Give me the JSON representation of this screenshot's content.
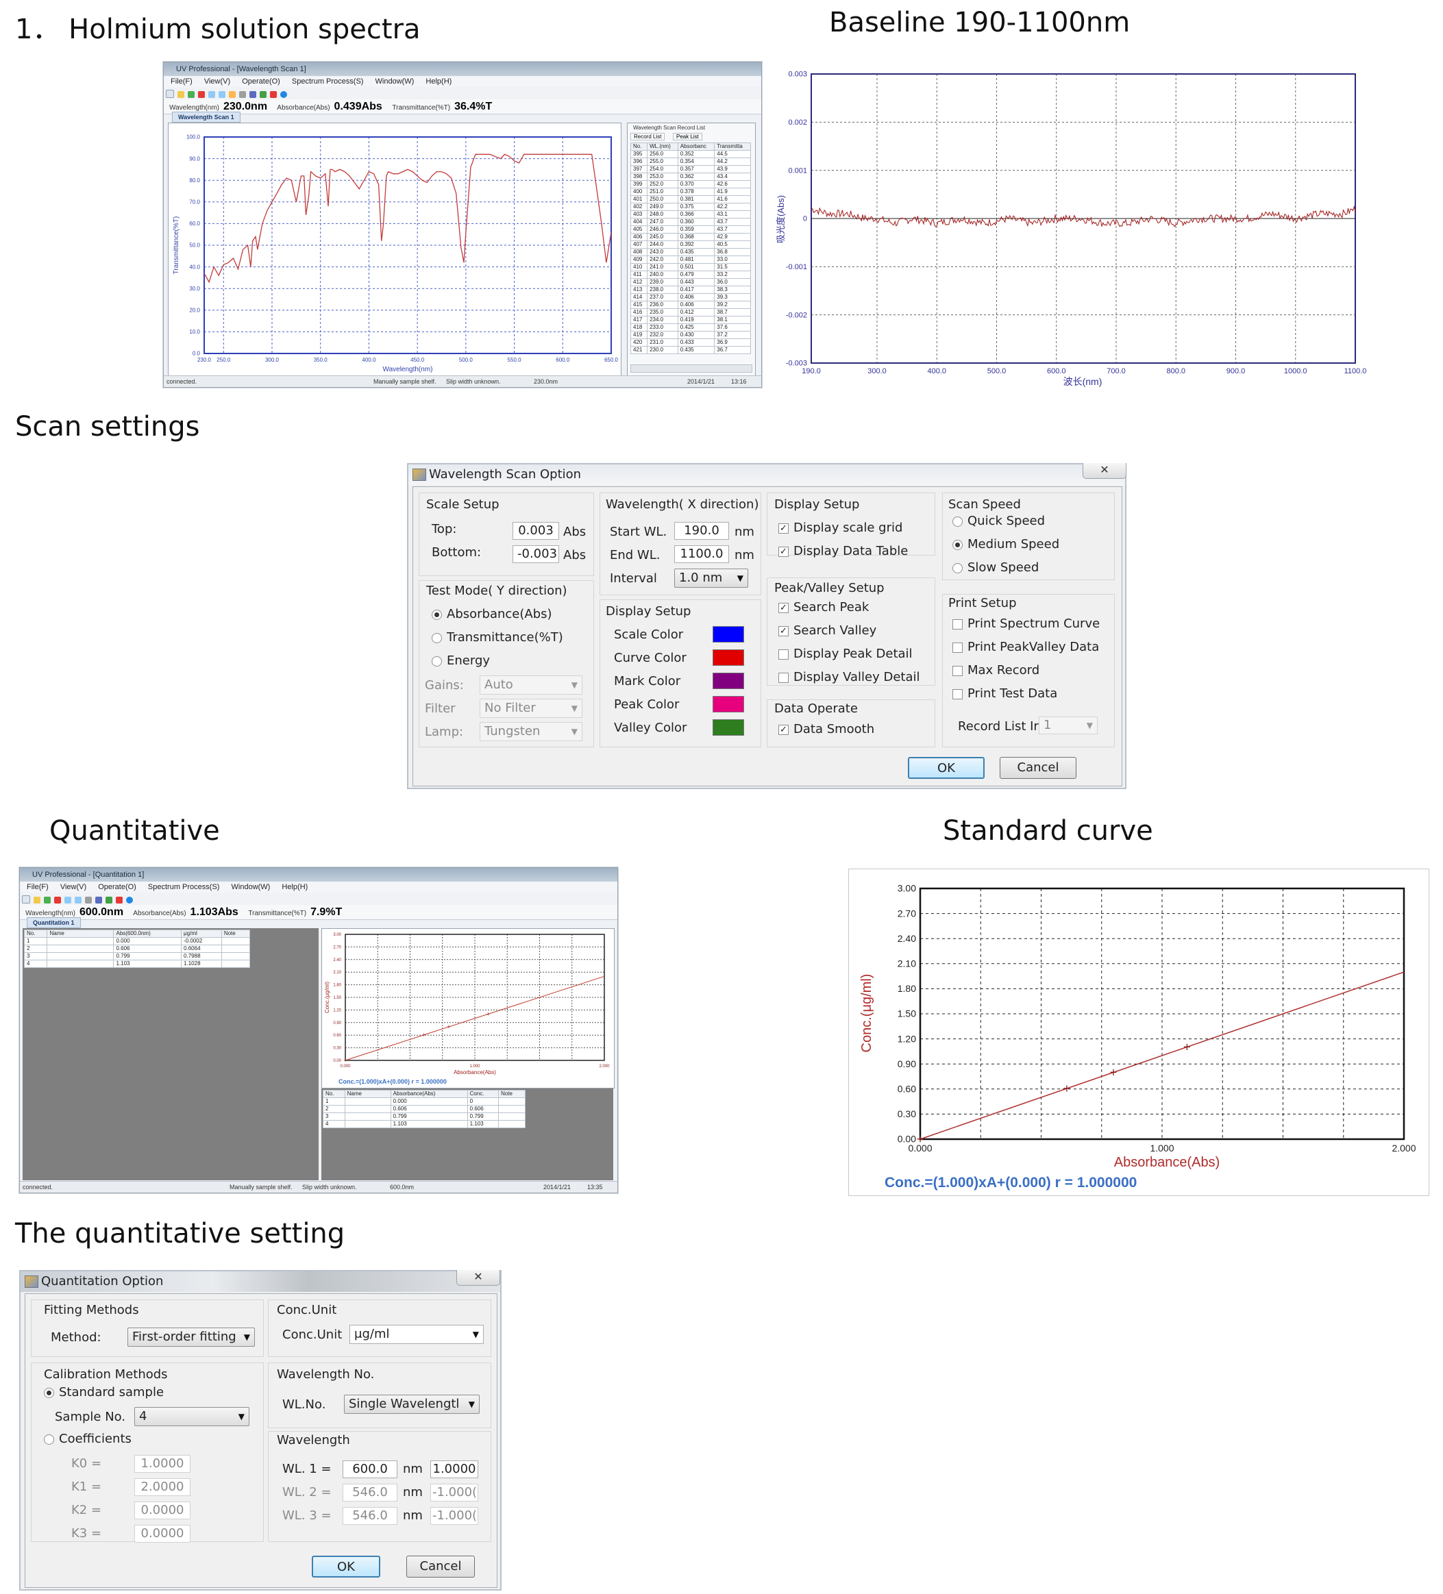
{
  "headings": {
    "holmium": "1． Holmium solution spectra",
    "baseline": "Baseline 190-1100nm",
    "scan_settings": "Scan settings",
    "quantitative": "Quantitative",
    "standard_curve": "Standard curve",
    "quant_setting": "The quantitative setting"
  },
  "scan_app": {
    "title": "UV Professional - [Wavelength Scan 1]",
    "menus": [
      "File(F)",
      "View(V)",
      "Operate(O)",
      "Spectrum Process(S)",
      "Window(W)",
      "Help(H)"
    ],
    "readout": {
      "wl_label": "Wavelength(nm)",
      "wl_value": "230.0nm",
      "abs_label": "Absorbance(Abs)",
      "abs_value": "0.439Abs",
      "trans_label": "Transmittance(%T)",
      "trans_value": "36.4%T"
    },
    "tab": "Wavelength Scan 1",
    "record_panel_title": "Wavelength Scan Record List",
    "record_tabs": [
      "Record List",
      "Peak List"
    ],
    "table_headers": [
      "No.",
      "WL.(nm)",
      "Absorbanc",
      "Transmitta"
    ],
    "table_rows": [
      [
        "395",
        "256.0",
        "0.352",
        "44.5"
      ],
      [
        "396",
        "255.0",
        "0.354",
        "44.2"
      ],
      [
        "397",
        "254.0",
        "0.357",
        "43.9"
      ],
      [
        "398",
        "253.0",
        "0.362",
        "43.4"
      ],
      [
        "399",
        "252.0",
        "0.370",
        "42.6"
      ],
      [
        "400",
        "251.0",
        "0.378",
        "41.9"
      ],
      [
        "401",
        "250.0",
        "0.381",
        "41.6"
      ],
      [
        "402",
        "249.0",
        "0.375",
        "42.2"
      ],
      [
        "403",
        "248.0",
        "0.366",
        "43.1"
      ],
      [
        "404",
        "247.0",
        "0.360",
        "43.7"
      ],
      [
        "405",
        "246.0",
        "0.359",
        "43.7"
      ],
      [
        "406",
        "245.0",
        "0.368",
        "42.9"
      ],
      [
        "407",
        "244.0",
        "0.392",
        "40.5"
      ],
      [
        "408",
        "243.0",
        "0.435",
        "36.8"
      ],
      [
        "409",
        "242.0",
        "0.481",
        "33.0"
      ],
      [
        "410",
        "241.0",
        "0.501",
        "31.5"
      ],
      [
        "411",
        "240.0",
        "0.479",
        "33.2"
      ],
      [
        "412",
        "239.0",
        "0.443",
        "36.0"
      ],
      [
        "413",
        "238.0",
        "0.417",
        "38.3"
      ],
      [
        "414",
        "237.0",
        "0.406",
        "39.3"
      ],
      [
        "415",
        "236.0",
        "0.406",
        "39.2"
      ],
      [
        "416",
        "235.0",
        "0.412",
        "38.7"
      ],
      [
        "417",
        "234.0",
        "0.419",
        "38.1"
      ],
      [
        "418",
        "233.0",
        "0.425",
        "37.6"
      ],
      [
        "419",
        "232.0",
        "0.430",
        "37.2"
      ],
      [
        "420",
        "231.0",
        "0.433",
        "36.9"
      ],
      [
        "421",
        "230.0",
        "0.435",
        "36.7"
      ]
    ],
    "status": [
      "connected.",
      "Manually sample shelf.",
      "Slip width unknown.",
      "230.0nm",
      "2014/1/21",
      "13:16"
    ]
  },
  "holmium_chart": {
    "type": "line",
    "xlabel": "Wavelength(nm)",
    "ylabel": "Transmittance(%T)",
    "xlim": [
      230,
      650
    ],
    "ylim": [
      0,
      100
    ],
    "xticks": [
      "230.0",
      "250.0",
      "300.0",
      "350.0",
      "400.0",
      "450.0",
      "500.0",
      "550.0",
      "600.0",
      "650.0"
    ],
    "yticks": [
      "0.0",
      "10.0",
      "20.0",
      "30.0",
      "40.0",
      "50.0",
      "60.0",
      "70.0",
      "80.0",
      "90.0",
      "100.0"
    ],
    "x": [
      230,
      235,
      240,
      245,
      250,
      255,
      260,
      265,
      270,
      275,
      278,
      280,
      283,
      285,
      290,
      295,
      300,
      305,
      310,
      315,
      320,
      325,
      330,
      333,
      335,
      338,
      340,
      345,
      350,
      355,
      358,
      360,
      362,
      365,
      370,
      375,
      380,
      385,
      390,
      395,
      400,
      405,
      410,
      413,
      415,
      418,
      420,
      425,
      430,
      435,
      440,
      445,
      450,
      455,
      460,
      465,
      470,
      475,
      480,
      485,
      490,
      495,
      498,
      500,
      505,
      510,
      515,
      520,
      525,
      530,
      536,
      540,
      545,
      550,
      555,
      560,
      570,
      580,
      590,
      600,
      610,
      620,
      630,
      640,
      645,
      650
    ],
    "y": [
      37,
      33,
      40,
      36,
      41,
      42,
      44,
      39,
      48,
      50,
      40,
      52,
      54,
      48,
      60,
      66,
      70,
      74,
      78,
      81,
      80,
      70,
      82,
      82,
      64,
      73,
      84,
      82,
      81,
      83,
      68,
      85,
      85,
      84,
      85,
      84,
      82,
      79,
      76,
      80,
      84,
      83,
      78,
      52,
      60,
      82,
      84,
      83,
      83,
      84,
      85,
      84,
      82,
      80,
      79,
      82,
      84,
      84,
      83,
      81,
      74,
      49,
      42,
      56,
      86,
      92,
      92,
      92,
      92,
      91,
      90,
      92,
      91,
      89,
      88,
      92,
      92,
      92,
      92,
      92,
      92,
      92,
      92,
      60,
      42,
      56
    ]
  },
  "baseline_chart": {
    "type": "line",
    "xlabel": "波长(nm)",
    "ylabel": "吸光度(Abs)",
    "xlim": [
      190,
      1100
    ],
    "ylim": [
      -0.003,
      0.003
    ],
    "xticks": [
      "190.0",
      "300.0",
      "400.0",
      "500.0",
      "600.0",
      "700.0",
      "800.0",
      "900.0",
      "1000.0",
      "1100.0"
    ],
    "yticks": [
      "-0.003",
      "-0.002",
      "-0.001",
      "0",
      "0.001",
      "0.002",
      "0.003"
    ],
    "x": [
      190,
      220,
      250,
      280,
      300,
      330,
      360,
      400,
      440,
      480,
      520,
      560,
      600,
      640,
      680,
      720,
      760,
      800,
      840,
      880,
      920,
      960,
      1000,
      1040,
      1080,
      1100
    ],
    "y": [
      0.0002,
      0.0001,
      0.0001,
      0.0,
      0.0,
      -0.0001,
      0.0,
      -0.0001,
      0.0,
      -0.0001,
      0.0,
      -0.0001,
      0.0,
      0.0,
      -0.0001,
      -0.0001,
      0.0,
      -0.0001,
      0.0,
      0.0,
      0.0,
      0.0001,
      0.0,
      0.0001,
      0.0001,
      0.0002
    ]
  },
  "scan_dialog": {
    "title": "Wavelength Scan Option",
    "close": "✕",
    "scale_setup": {
      "title": "Scale Setup",
      "top_label": "Top:",
      "top_value": "0.003",
      "bottom_label": "Bottom:",
      "bottom_value": "-0.003",
      "unit": "Abs"
    },
    "wavelength": {
      "title": "Wavelength( X direction)",
      "start_label": "Start WL.",
      "start_value": "190.0",
      "end_label": "End WL.",
      "end_value": "1100.0",
      "interval_label": "Interval",
      "interval_value": "1.0 nm",
      "unit": "nm"
    },
    "display_setup": {
      "title": "Display Setup",
      "grid": "Display scale grid",
      "table": "Display Data Table"
    },
    "scan_speed": {
      "title": "Scan Speed",
      "quick": "Quick Speed",
      "medium": "Medium Speed",
      "slow": "Slow Speed"
    },
    "test_mode": {
      "title": "Test Mode( Y direction)",
      "abs": "Absorbance(Abs)",
      "trans": "Transmittance(%T)",
      "energy": "Energy",
      "gains_label": "Gains:",
      "gains_value": "Auto",
      "filter_label": "Filter",
      "filter_value": "No Filter",
      "lamp_label": "Lamp:",
      "lamp_value": "Tungsten"
    },
    "color_setup": {
      "title": "Display Setup",
      "scale": "Scale Color",
      "curve": "Curve Color",
      "mark": "Mark Color",
      "peak": "Peak Color",
      "valley": "Valley Color"
    },
    "colors": {
      "scale": "#0000ff",
      "curve": "#e00000",
      "mark": "#800080",
      "peak": "#e6007e",
      "valley": "#2e7d1f"
    },
    "peak_valley": {
      "title": "Peak/Valley Setup",
      "search_peak": "Search Peak",
      "search_valley": "Search Valley",
      "peak_detail": "Display Peak Detail",
      "valley_detail": "Display Valley Detail"
    },
    "data_operate": {
      "title": "Data Operate",
      "smooth": "Data Smooth"
    },
    "print_setup": {
      "title": "Print Setup",
      "curve": "Print Spectrum Curve",
      "peakvalley": "Print PeakValley Data",
      "max": "Max Record",
      "test": "Print Test Data",
      "record_label": "Record List Ir",
      "record_value": "1"
    },
    "ok": "OK",
    "cancel": "Cancel"
  },
  "quant_app": {
    "title": "UV Professional - [Quantitation 1]",
    "menus": [
      "File(F)",
      "View(V)",
      "Operate(O)",
      "Spectrum Process(S)",
      "Window(W)",
      "Help(H)"
    ],
    "readout": {
      "wl_label": "Wavelength(nm)",
      "wl_value": "600.0nm",
      "abs_label": "Absorbance(Abs)",
      "abs_value": "1.103Abs",
      "trans_label": "Transmittance(%T)",
      "trans_value": "7.9%T"
    },
    "tab": "Quantitation 1",
    "left_headers": [
      "No.",
      "Name",
      "Abs(600.0nm)",
      "μg/ml",
      "Note"
    ],
    "left_rows": [
      [
        "1",
        "",
        "0.000",
        "-0.0002",
        ""
      ],
      [
        "2",
        "",
        "0.606",
        "0.6064",
        ""
      ],
      [
        "3",
        "",
        "0.799",
        "0.7988",
        ""
      ],
      [
        "4",
        "",
        "1.103",
        "1.1028",
        ""
      ]
    ],
    "std_headers": [
      "No.",
      "Name",
      "Absorbance(Abs)",
      "Conc.",
      "Note"
    ],
    "std_rows": [
      [
        "1",
        "",
        "0.000",
        "0",
        ""
      ],
      [
        "2",
        "",
        "0.606",
        "0.606",
        ""
      ],
      [
        "3",
        "",
        "0.799",
        "0.799",
        ""
      ],
      [
        "4",
        "",
        "1.103",
        "1.103",
        ""
      ]
    ],
    "mini_equation": "Conc.=(1.000)xA+(0.000)  r = 1.000000",
    "status": [
      "connected.",
      "Manually sample shelf.",
      "Slip width unknown.",
      "600.0nm",
      "2014/1/21",
      "13:35"
    ]
  },
  "quant_mini_chart": {
    "type": "line",
    "xlabel": "Absorbance(Abs)",
    "ylabel": "Conc.(μg/ml)",
    "xlim": [
      0,
      2
    ],
    "ylim": [
      0,
      3
    ],
    "xticks": [
      "0.000",
      "1.000",
      "2.000"
    ],
    "yticks": [
      "0.00",
      "0.30",
      "0.60",
      "0.90",
      "1.20",
      "1.50",
      "1.80",
      "2.10",
      "2.40",
      "2.70",
      "3.00"
    ],
    "x": [
      0,
      2
    ],
    "y": [
      0,
      2
    ],
    "points_x": [
      0.0,
      0.606,
      0.799,
      1.103
    ],
    "points_y": [
      0.0,
      0.606,
      0.799,
      1.103
    ]
  },
  "chart_data": {
    "type": "line",
    "title": "",
    "xlabel": "Absorbance(Abs)",
    "ylabel": "Conc.(μg/ml)",
    "xlim": [
      0,
      2
    ],
    "ylim": [
      0,
      3
    ],
    "grid": true,
    "xticks": [
      "0.000",
      "1.000",
      "2.000"
    ],
    "yticks": [
      "0.00",
      "0.30",
      "0.60",
      "0.90",
      "1.20",
      "1.50",
      "1.80",
      "2.10",
      "2.40",
      "2.70",
      "3.00"
    ],
    "x": [
      0,
      2
    ],
    "y": [
      0,
      2
    ],
    "points_x": [
      0.0,
      0.606,
      0.799,
      1.103
    ],
    "points_y": [
      0.0,
      0.606,
      0.799,
      1.103
    ],
    "equation": "Conc.=(1.000)xA+(0.000)  r = 1.000000"
  },
  "quant_dialog": {
    "title": "Quantitation Option",
    "close": "✕",
    "fitting": {
      "title": "Fitting Methods",
      "method_label": "Method:",
      "method_value": "First-order fitting"
    },
    "conc_unit": {
      "title": "Conc.Unit",
      "label": "Conc.Unit",
      "value": "μg/ml"
    },
    "calibration": {
      "title": "Calibration Methods",
      "standard": "Standard sample",
      "sample_label": "Sample No.",
      "sample_value": "4",
      "coefficients": "Coefficients",
      "k0_label": "K0 =",
      "k0": "1.0000",
      "k1_label": "K1 =",
      "k1": "2.0000",
      "k2_label": "K2 =",
      "k2": "0.0000",
      "k3_label": "K3 =",
      "k3": "0.0000"
    },
    "wl_no": {
      "title": "Wavelength No.",
      "label": "WL.No.",
      "value": "Single Wavelengtl"
    },
    "wavelength": {
      "title": "Wavelength",
      "wl1_label": "WL. 1 =",
      "wl1": "600.0",
      "wl1_coef": "1.0000",
      "wl2_label": "WL. 2 =",
      "wl2": "546.0",
      "wl2_coef": "-1.000(",
      "wl3_label": "WL. 3 =",
      "wl3": "546.0",
      "wl3_coef": "-1.000(",
      "unit": "nm"
    },
    "ok": "OK",
    "cancel": "Cancel"
  }
}
